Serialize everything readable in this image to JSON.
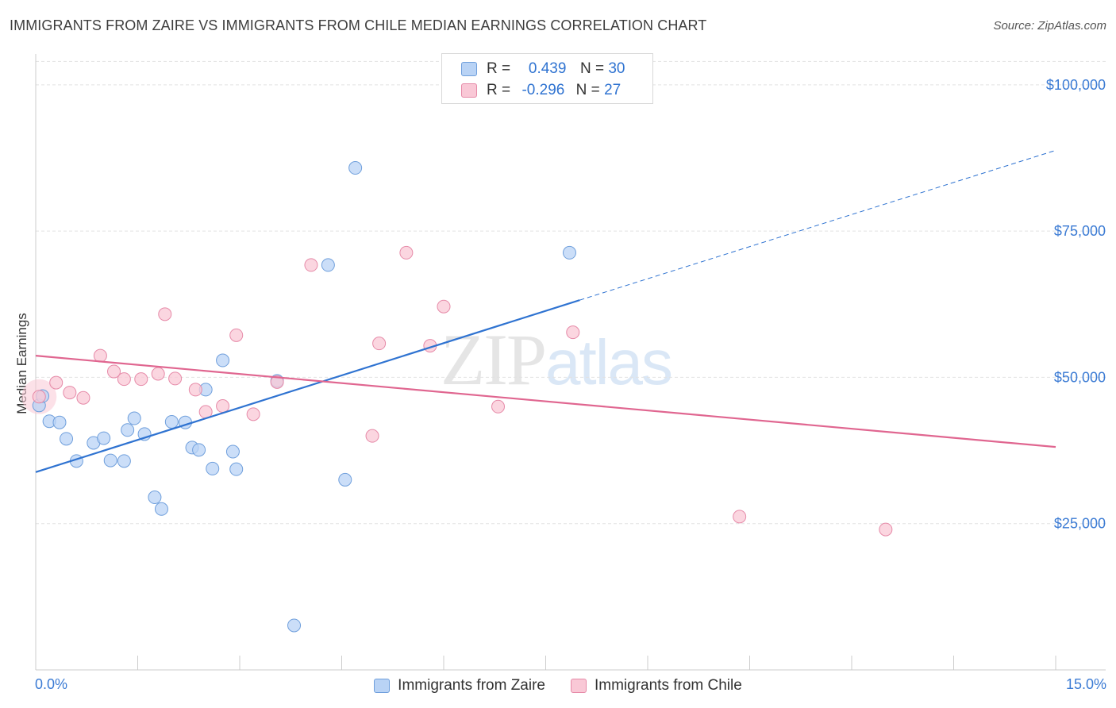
{
  "header": {
    "title": "IMMIGRANTS FROM ZAIRE VS IMMIGRANTS FROM CHILE MEDIAN EARNINGS CORRELATION CHART",
    "source": "Source: ZipAtlas.com"
  },
  "watermark": {
    "zip": "ZIP",
    "atlas": "atlas"
  },
  "legend_top": {
    "rows": [
      {
        "r_label": "R =",
        "r_value": "0.439",
        "n_label": "N =",
        "n_value": "30"
      },
      {
        "r_label": "R =",
        "r_value": "-0.296",
        "n_label": "N =",
        "n_value": "27"
      }
    ]
  },
  "legend_bottom": {
    "items": [
      {
        "label": "Immigrants from Zaire"
      },
      {
        "label": "Immigrants from Chile"
      }
    ]
  },
  "x_axis": {
    "min_label": "0.0%",
    "max_label": "15.0%"
  },
  "chart_data": {
    "type": "scatter",
    "title": "IMMIGRANTS FROM ZAIRE VS IMMIGRANTS FROM CHILE MEDIAN EARNINGS CORRELATION CHART",
    "xlabel": "",
    "ylabel": "Median Earnings",
    "xlim": [
      0,
      15
    ],
    "ylim": [
      0,
      105000
    ],
    "x_unit": "%",
    "y_ticks": [
      25000,
      50000,
      75000,
      100000
    ],
    "y_tick_labels": [
      "$25,000",
      "$50,000",
      "$75,000",
      "$100,000"
    ],
    "grid": true,
    "legend_position": "top-center",
    "colors": {
      "zaire_fill": "#b9d3f5",
      "zaire_stroke": "#6f9fdc",
      "zaire_line": "#2f73d1",
      "chile_fill": "#f9c8d6",
      "chile_stroke": "#e68aa8",
      "chile_line": "#e06690",
      "tick_text": "#3b7bd4"
    },
    "series": [
      {
        "name": "Immigrants from Zaire",
        "r": 0.439,
        "n": 30,
        "points": [
          [
            0.05,
            45200
          ],
          [
            0.2,
            42500
          ],
          [
            0.35,
            42300
          ],
          [
            0.45,
            39500
          ],
          [
            0.6,
            35700
          ],
          [
            0.85,
            38800
          ],
          [
            1.0,
            39600
          ],
          [
            1.1,
            35800
          ],
          [
            1.3,
            35700
          ],
          [
            1.35,
            41000
          ],
          [
            1.45,
            43000
          ],
          [
            1.6,
            40300
          ],
          [
            1.75,
            29500
          ],
          [
            1.85,
            27500
          ],
          [
            2.0,
            42400
          ],
          [
            2.2,
            42300
          ],
          [
            2.3,
            38000
          ],
          [
            2.4,
            37600
          ],
          [
            2.5,
            47900
          ],
          [
            2.6,
            34400
          ],
          [
            2.75,
            52900
          ],
          [
            2.9,
            37300
          ],
          [
            2.95,
            34300
          ],
          [
            3.55,
            49400
          ],
          [
            3.8,
            7600
          ],
          [
            4.3,
            69200
          ],
          [
            4.55,
            32500
          ],
          [
            4.7,
            85800
          ],
          [
            7.85,
            71300
          ],
          [
            0.1,
            46800
          ]
        ],
        "trend": {
          "x": [
            0,
            8.0
          ],
          "y": [
            33800,
            63200
          ],
          "dashed_to": [
            15.0,
            88800
          ]
        }
      },
      {
        "name": "Immigrants from Chile",
        "r": -0.296,
        "n": 27,
        "points": [
          [
            0.05,
            46700
          ],
          [
            0.3,
            49100
          ],
          [
            0.5,
            47400
          ],
          [
            0.7,
            46500
          ],
          [
            0.95,
            53700
          ],
          [
            1.15,
            51000
          ],
          [
            1.3,
            49700
          ],
          [
            1.55,
            49700
          ],
          [
            1.8,
            50600
          ],
          [
            1.9,
            60800
          ],
          [
            2.05,
            49800
          ],
          [
            2.35,
            47900
          ],
          [
            2.5,
            44100
          ],
          [
            2.75,
            45100
          ],
          [
            2.95,
            57200
          ],
          [
            3.2,
            43700
          ],
          [
            3.55,
            49200
          ],
          [
            4.05,
            69200
          ],
          [
            4.95,
            40000
          ],
          [
            5.05,
            55800
          ],
          [
            5.45,
            71300
          ],
          [
            5.8,
            55400
          ],
          [
            6.0,
            62100
          ],
          [
            6.8,
            45000
          ],
          [
            7.9,
            57700
          ],
          [
            10.35,
            26200
          ],
          [
            12.5,
            24000
          ]
        ],
        "trend": {
          "x": [
            0,
            15.0
          ],
          "y": [
            53700,
            38100
          ]
        }
      }
    ]
  }
}
